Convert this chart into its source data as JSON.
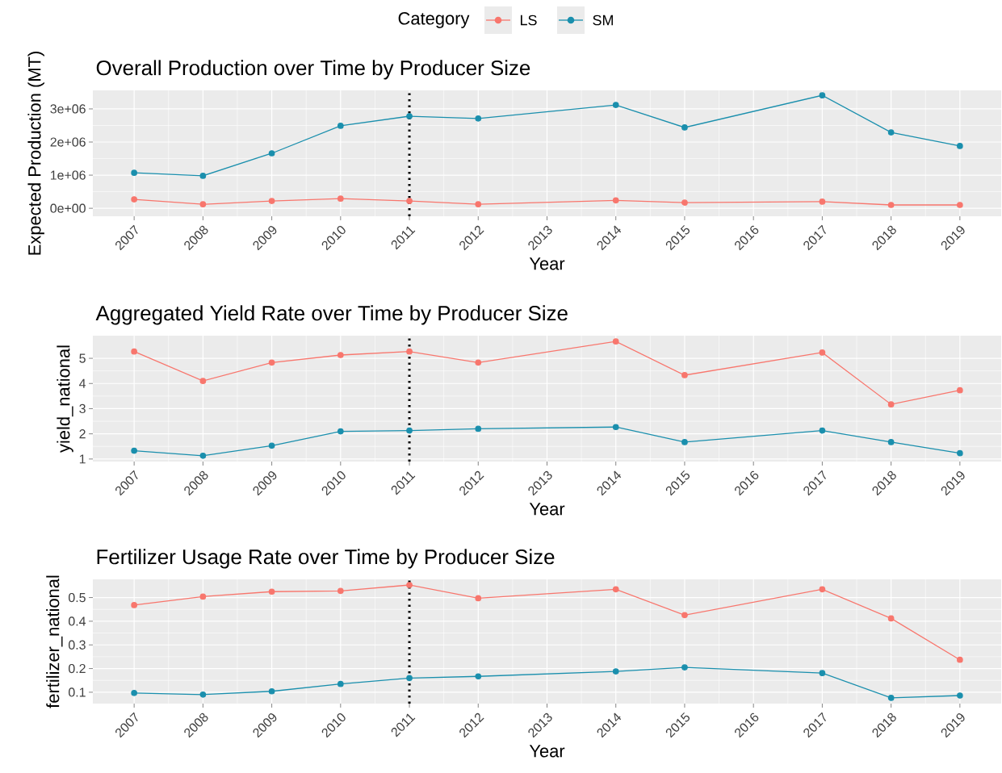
{
  "chart_data": [
    {
      "type": "line",
      "title": "Overall Production over Time by Producer Size",
      "xlabel": "Year",
      "ylabel": "Expected Production (MT)",
      "legend_title": "Category",
      "legend": "top",
      "grid": true,
      "marker": "circle",
      "line_style": "solid",
      "x": [
        2007,
        2008,
        2009,
        2010,
        2011,
        2012,
        2014,
        2015,
        2017,
        2018,
        2019
      ],
      "series": [
        {
          "name": "LS",
          "color": "#f8766d",
          "values": [
            270000,
            120000,
            220000,
            290000,
            220000,
            120000,
            240000,
            170000,
            200000,
            100000,
            100000
          ]
        },
        {
          "name": "SM",
          "color": "#1a8fad",
          "values": [
            1070000,
            980000,
            1660000,
            2490000,
            2780000,
            2710000,
            3120000,
            2440000,
            3410000,
            2290000,
            1880000
          ]
        }
      ],
      "xlim": [
        2006.4,
        2019.6
      ],
      "xticks": [
        2007,
        2008,
        2009,
        2010,
        2011,
        2012,
        2013,
        2014,
        2015,
        2016,
        2017,
        2018,
        2019
      ],
      "ylim": [
        -240000,
        3560000
      ],
      "yticks": [
        {
          "value": 0,
          "label": "0e+00"
        },
        {
          "value": 1000000,
          "label": "1e+06"
        },
        {
          "value": 2000000,
          "label": "2e+06"
        },
        {
          "value": 3000000,
          "label": "3e+06"
        }
      ],
      "ref_lines": [
        {
          "axis": "x",
          "value": 2011,
          "color": "#000000",
          "line_style": "dotted"
        }
      ]
    },
    {
      "type": "line",
      "title": "Aggregated Yield Rate over Time by Producer Size",
      "xlabel": "Year",
      "ylabel": "yield_national",
      "grid": true,
      "marker": "circle",
      "line_style": "solid",
      "x": [
        2007,
        2008,
        2009,
        2010,
        2011,
        2012,
        2014,
        2015,
        2017,
        2018,
        2019
      ],
      "series": [
        {
          "color": "#f8766d",
          "values": [
            5.27,
            4.1,
            4.83,
            5.13,
            5.27,
            4.83,
            5.67,
            4.33,
            5.23,
            3.17,
            3.73
          ]
        },
        {
          "color": "#1a8fad",
          "values": [
            1.33,
            1.13,
            1.53,
            2.1,
            2.13,
            2.2,
            2.27,
            1.67,
            2.13,
            1.67,
            1.23
          ]
        }
      ],
      "xlim": [
        2006.4,
        2019.6
      ],
      "xticks": [
        2007,
        2008,
        2009,
        2010,
        2011,
        2012,
        2013,
        2014,
        2015,
        2016,
        2017,
        2018,
        2019
      ],
      "ylim": [
        0.9,
        5.9
      ],
      "yticks": [
        1,
        2,
        3,
        4,
        5
      ],
      "ref_lines": [
        {
          "axis": "x",
          "value": 2011,
          "color": "#000000",
          "line_style": "dotted"
        }
      ]
    },
    {
      "type": "line",
      "title": "Fertilizer Usage Rate over Time by Producer Size",
      "xlabel": "Year",
      "ylabel": "fertilizer_national",
      "grid": true,
      "marker": "circle",
      "line_style": "solid",
      "x": [
        2007,
        2008,
        2009,
        2010,
        2011,
        2012,
        2014,
        2015,
        2017,
        2018,
        2019
      ],
      "series": [
        {
          "color": "#f8766d",
          "values": [
            0.468,
            0.504,
            0.525,
            0.528,
            0.553,
            0.497,
            0.535,
            0.426,
            0.535,
            0.412,
            0.237
          ]
        },
        {
          "color": "#1a8fad",
          "values": [
            0.097,
            0.09,
            0.104,
            0.135,
            0.16,
            0.167,
            0.188,
            0.205,
            0.181,
            0.076,
            0.086
          ]
        }
      ],
      "xlim": [
        2006.4,
        2019.6
      ],
      "xticks": [
        2007,
        2008,
        2009,
        2010,
        2011,
        2012,
        2013,
        2014,
        2015,
        2016,
        2017,
        2018,
        2019
      ],
      "ylim": [
        0.052,
        0.577
      ],
      "yticks": [
        0.1,
        0.2,
        0.3,
        0.4,
        0.5
      ],
      "ref_lines": [
        {
          "axis": "x",
          "value": 2011,
          "color": "#000000",
          "line_style": "dotted"
        }
      ]
    }
  ]
}
